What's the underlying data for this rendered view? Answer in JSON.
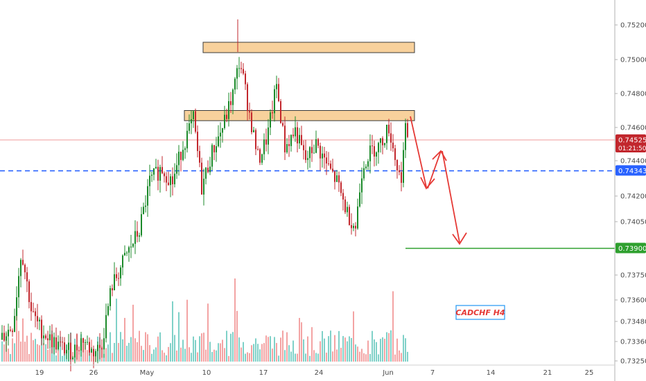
{
  "chart_data": {
    "type": "candlestick",
    "symbol_label": "CADCHF H4",
    "y_axis": {
      "ylim": [
        0.7322,
        0.7528
      ],
      "ticks": [
        "0.75200",
        "0.75000",
        "0.74800",
        "0.74600",
        "0.74400",
        "0.74200",
        "0.74050",
        "0.73750",
        "0.73600",
        "0.73480",
        "0.73360",
        "0.73250"
      ]
    },
    "x_axis": {
      "ticks": [
        "19",
        "26",
        "May",
        "10",
        "17",
        "24",
        "Jun",
        "7",
        "14",
        "21",
        "25"
      ]
    },
    "price_labels": {
      "current_price": "0.74525",
      "countdown": "01:21:50",
      "blue_line": "0.74343",
      "target": "0.73900"
    },
    "zones": [
      {
        "name": "upper-resistance",
        "from": 0.7504,
        "to": 0.751
      },
      {
        "name": "lower-resistance",
        "from": 0.7464,
        "to": 0.747
      }
    ],
    "colors": {
      "bull": "#26a69a",
      "candle_up": "#1b8a2a",
      "candle_down": "#c2272d",
      "vol_up": "#7fd1c8",
      "vol_down": "#f3a3a3",
      "zone_fill": "#f8d19c",
      "blue_line": "#2962ff",
      "target_line": "#2ea02e",
      "current_line": "#ef9a9a",
      "arrow": "#e53935",
      "symbol_text": "#e53935",
      "symbol_border": "#2196f3"
    }
  }
}
